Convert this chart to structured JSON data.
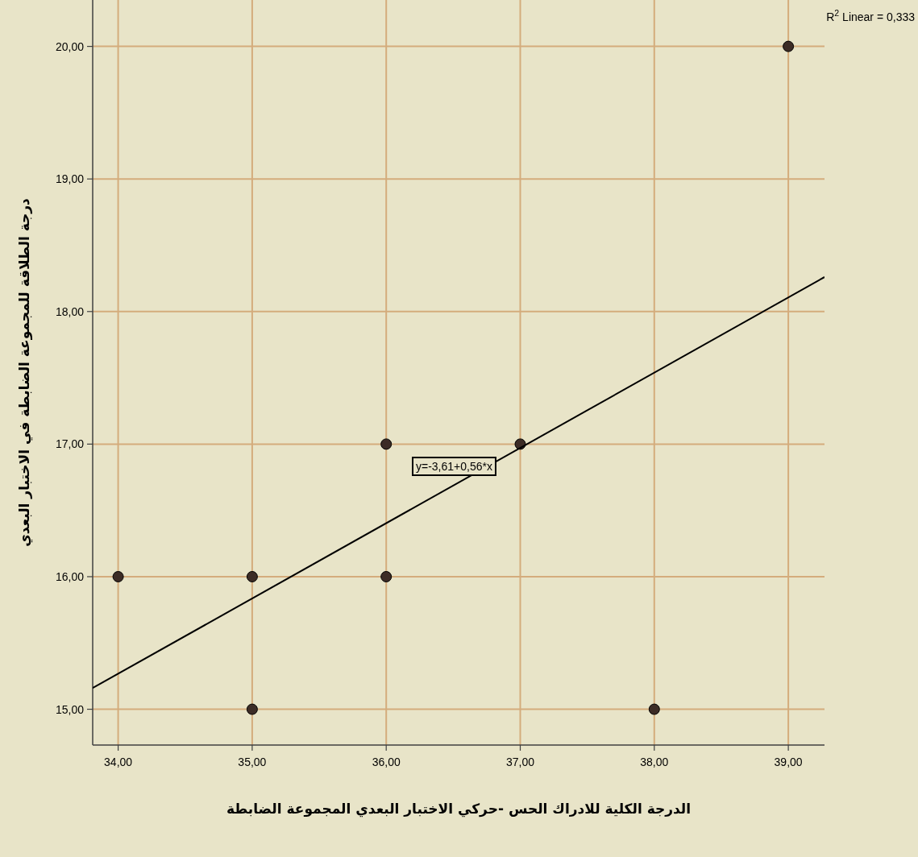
{
  "chart_data": {
    "type": "scatter",
    "xlabel": "الدرجة الكلية للادراك الحس -حركي الاختبار البعدي المجموعة الضابطة",
    "ylabel": "درجة الطلاقة للمجموعة الضابطة في الاختبار البعدي",
    "series": [
      {
        "color": "#3c2c26",
        "x": [
          34,
          35,
          35,
          36,
          36,
          37,
          38,
          39
        ],
        "values": [
          16,
          16,
          15,
          17,
          16,
          17,
          15,
          20
        ]
      },
      {
        "type": "line",
        "color": "#000000",
        "marker": "none",
        "line_style": "solid",
        "x": [
          33.81,
          39.27
        ],
        "values": [
          15.16,
          18.26
        ]
      }
    ],
    "marker": "circle",
    "xlim": [
      33.81,
      39.27
    ],
    "ylim": [
      14.73,
      20.35
    ],
    "xticks": [
      {
        "value": 34,
        "label": "34,00"
      },
      {
        "value": 35,
        "label": "35,00"
      },
      {
        "value": 36,
        "label": "36,00"
      },
      {
        "value": 37,
        "label": "37,00"
      },
      {
        "value": 38,
        "label": "38,00"
      },
      {
        "value": 39,
        "label": "39,00"
      }
    ],
    "yticks": [
      {
        "value": 15,
        "label": "15,00"
      },
      {
        "value": 16,
        "label": "16,00"
      },
      {
        "value": 17,
        "label": "17,00"
      },
      {
        "value": 18,
        "label": "18,00"
      },
      {
        "value": 19,
        "label": "19,00"
      },
      {
        "value": 20,
        "label": "20,00"
      }
    ],
    "grid": true,
    "annotations": [
      "y=-3,61+0,56*x",
      "R$^{2}$ Linear = 0,333"
    ]
  }
}
